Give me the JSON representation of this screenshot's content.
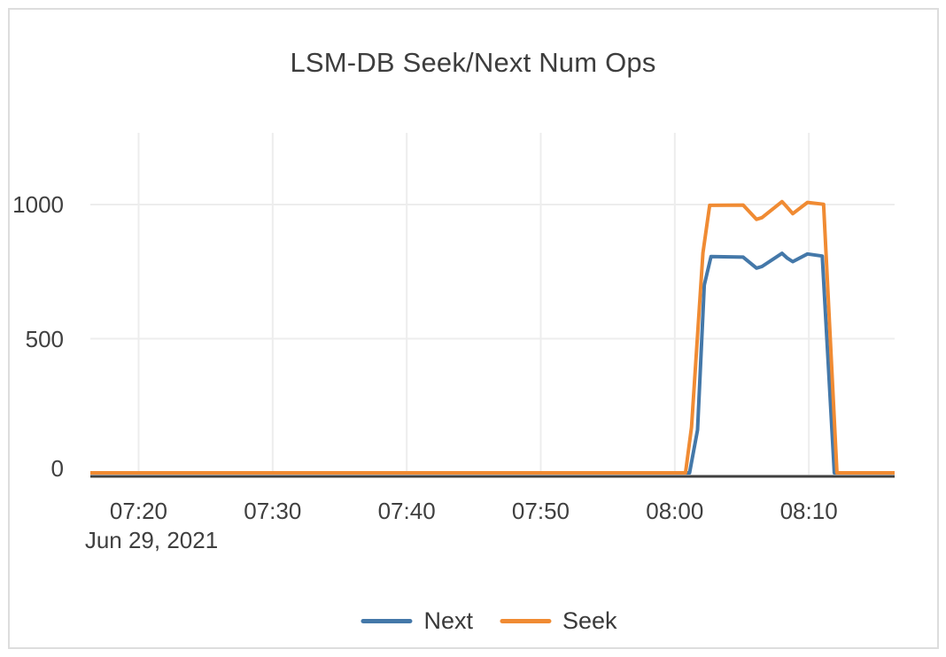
{
  "card": {
    "background": "#ffffff",
    "border_color": "#dddddd"
  },
  "chart_data": {
    "type": "line",
    "title": "LSM-DB Seek/Next Num Ops",
    "grid": true,
    "legend_position": "bottom-center",
    "colors": {
      "grid": "#ededed",
      "axis_line": "#3f3f3f",
      "text": "#3f3f3f",
      "title": "#3d3d3d"
    },
    "x_axis": {
      "date_label": "Jun 29, 2021",
      "domain": [
        "07:16:24",
        "08:16:24"
      ],
      "ticks": [
        {
          "time": "07:20:00",
          "label": "07:20"
        },
        {
          "time": "07:30:00",
          "label": "07:30"
        },
        {
          "time": "07:40:00",
          "label": "07:40"
        },
        {
          "time": "07:50:00",
          "label": "07:50"
        },
        {
          "time": "08:00:00",
          "label": "08:00"
        },
        {
          "time": "08:10:00",
          "label": "08:10"
        }
      ]
    },
    "y_axis": {
      "ticks": [
        0,
        500,
        1000
      ],
      "range": [
        0,
        1265
      ]
    },
    "series": [
      {
        "name": "Next",
        "color": "#4478a9",
        "points": [
          [
            "07:16:24",
            0
          ],
          [
            "08:01:06",
            0
          ],
          [
            "08:01:42",
            160
          ],
          [
            "08:02:12",
            700
          ],
          [
            "08:02:42",
            806
          ],
          [
            "08:05:06",
            804
          ],
          [
            "08:06:06",
            763
          ],
          [
            "08:06:30",
            769
          ],
          [
            "08:08:00",
            818
          ],
          [
            "08:08:24",
            800
          ],
          [
            "08:08:48",
            787
          ],
          [
            "08:09:54",
            816
          ],
          [
            "08:11:00",
            808
          ],
          [
            "08:11:54",
            0
          ],
          [
            "08:16:24",
            0
          ]
        ]
      },
      {
        "name": "Seek",
        "color": "#f08b33",
        "points": [
          [
            "07:16:24",
            0
          ],
          [
            "08:00:48",
            0
          ],
          [
            "08:01:15",
            170
          ],
          [
            "08:02:06",
            820
          ],
          [
            "08:02:36",
            997
          ],
          [
            "08:05:06",
            998
          ],
          [
            "08:06:06",
            945
          ],
          [
            "08:06:30",
            951
          ],
          [
            "08:08:00",
            1011
          ],
          [
            "08:08:24",
            989
          ],
          [
            "08:08:48",
            966
          ],
          [
            "08:09:54",
            1008
          ],
          [
            "08:11:06",
            1001
          ],
          [
            "08:12:06",
            0
          ],
          [
            "08:16:24",
            0
          ]
        ]
      }
    ]
  }
}
